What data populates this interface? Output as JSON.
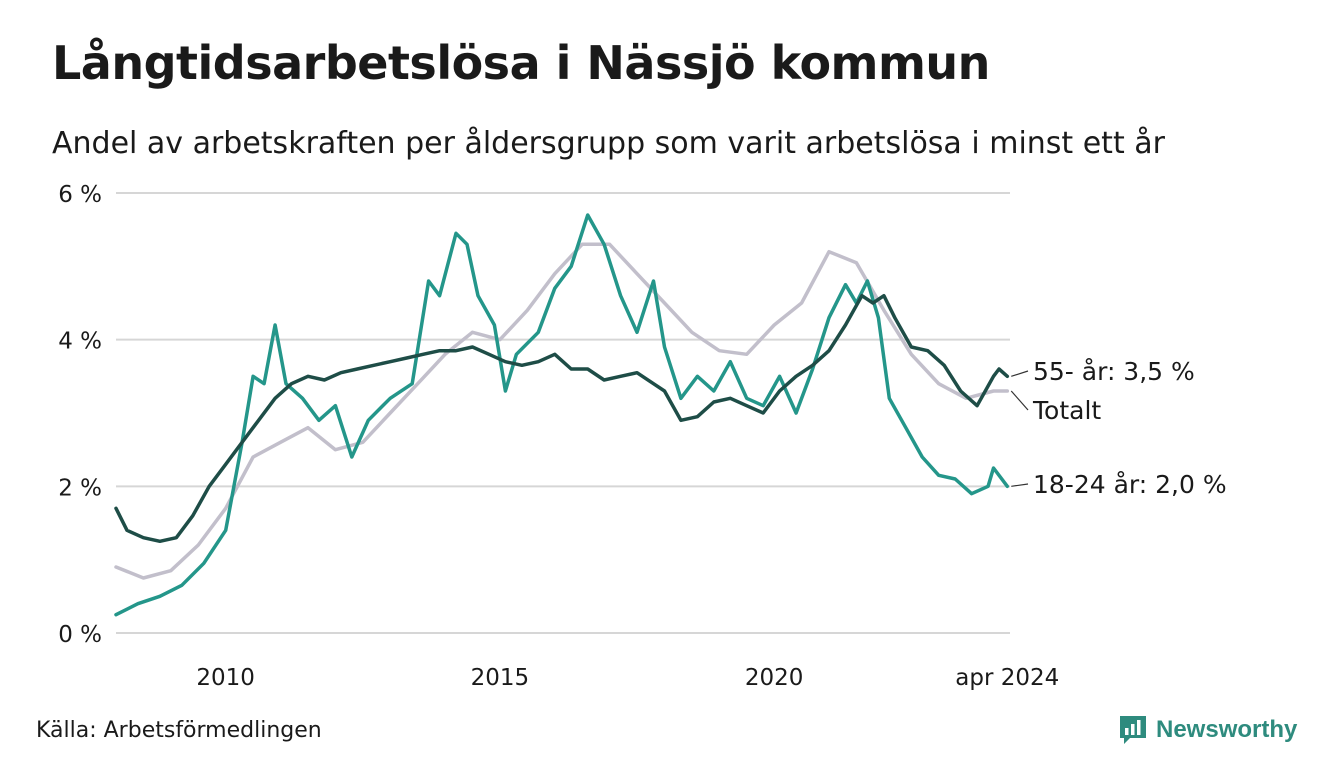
{
  "header": {
    "title": "Långtidsarbetslösa i Nässjö kommun",
    "subtitle": "Andel av arbetskraften per åldersgrupp som varit arbetslösa i minst ett år"
  },
  "footer": {
    "source": "Källa: Arbetsförmedlingen",
    "brand": "Newsworthy",
    "brand_icon": "newsworthy-logo-icon"
  },
  "colors": {
    "senior": "#1e4d47",
    "youth": "#24968a",
    "total": "#c2bfcb",
    "grid": "#d6d6d6",
    "brand": "#2e8b7e"
  },
  "chart_data": {
    "type": "line",
    "title": "Långtidsarbetslösa i Nässjö kommun",
    "xlabel": "",
    "ylabel": "",
    "x_start": "2008-01",
    "x_end": "2024-04",
    "xlim": [
      2008.0,
      2024.3
    ],
    "ylim": [
      0,
      6
    ],
    "grid": true,
    "y_ticks": [
      {
        "value": 0,
        "label": "0 %"
      },
      {
        "value": 2,
        "label": "2 %"
      },
      {
        "value": 4,
        "label": "4 %"
      },
      {
        "value": 6,
        "label": "6 %"
      }
    ],
    "x_ticks": [
      {
        "value": 2010.0,
        "label": "2010"
      },
      {
        "value": 2015.0,
        "label": "2015"
      },
      {
        "value": 2020.0,
        "label": "2020"
      },
      {
        "value": 2024.25,
        "label": "apr 2024"
      }
    ],
    "series": [
      {
        "name": "Totalt",
        "label": "Totalt",
        "color": "#c2bfcb",
        "points": [
          [
            2008.0,
            0.9
          ],
          [
            2008.5,
            0.75
          ],
          [
            2009.0,
            0.85
          ],
          [
            2009.5,
            1.2
          ],
          [
            2010.0,
            1.7
          ],
          [
            2010.5,
            2.4
          ],
          [
            2011.0,
            2.6
          ],
          [
            2011.5,
            2.8
          ],
          [
            2012.0,
            2.5
          ],
          [
            2012.5,
            2.6
          ],
          [
            2013.0,
            3.0
          ],
          [
            2013.5,
            3.4
          ],
          [
            2014.0,
            3.8
          ],
          [
            2014.5,
            4.1
          ],
          [
            2015.0,
            4.0
          ],
          [
            2015.5,
            4.4
          ],
          [
            2016.0,
            4.9
          ],
          [
            2016.5,
            5.3
          ],
          [
            2017.0,
            5.3
          ],
          [
            2017.5,
            4.9
          ],
          [
            2018.0,
            4.5
          ],
          [
            2018.5,
            4.1
          ],
          [
            2019.0,
            3.85
          ],
          [
            2019.5,
            3.8
          ],
          [
            2020.0,
            4.2
          ],
          [
            2020.5,
            4.5
          ],
          [
            2021.0,
            5.2
          ],
          [
            2021.5,
            5.05
          ],
          [
            2022.0,
            4.4
          ],
          [
            2022.5,
            3.8
          ],
          [
            2023.0,
            3.4
          ],
          [
            2023.5,
            3.2
          ],
          [
            2024.0,
            3.3
          ],
          [
            2024.25,
            3.3
          ]
        ]
      },
      {
        "name": "18-24 år",
        "label": "18-24 år: 2,0 %",
        "color": "#24968a",
        "points": [
          [
            2008.0,
            0.25
          ],
          [
            2008.4,
            0.4
          ],
          [
            2008.8,
            0.5
          ],
          [
            2009.2,
            0.65
          ],
          [
            2009.6,
            0.95
          ],
          [
            2010.0,
            1.4
          ],
          [
            2010.3,
            2.6
          ],
          [
            2010.5,
            3.5
          ],
          [
            2010.7,
            3.4
          ],
          [
            2010.9,
            4.2
          ],
          [
            2011.1,
            3.4
          ],
          [
            2011.4,
            3.2
          ],
          [
            2011.7,
            2.9
          ],
          [
            2012.0,
            3.1
          ],
          [
            2012.3,
            2.4
          ],
          [
            2012.6,
            2.9
          ],
          [
            2013.0,
            3.2
          ],
          [
            2013.4,
            3.4
          ],
          [
            2013.7,
            4.8
          ],
          [
            2013.9,
            4.6
          ],
          [
            2014.2,
            5.45
          ],
          [
            2014.4,
            5.3
          ],
          [
            2014.6,
            4.6
          ],
          [
            2014.9,
            4.2
          ],
          [
            2015.1,
            3.3
          ],
          [
            2015.3,
            3.8
          ],
          [
            2015.7,
            4.1
          ],
          [
            2016.0,
            4.7
          ],
          [
            2016.3,
            5.0
          ],
          [
            2016.6,
            5.7
          ],
          [
            2016.9,
            5.3
          ],
          [
            2017.2,
            4.6
          ],
          [
            2017.5,
            4.1
          ],
          [
            2017.8,
            4.8
          ],
          [
            2018.0,
            3.9
          ],
          [
            2018.3,
            3.2
          ],
          [
            2018.6,
            3.5
          ],
          [
            2018.9,
            3.3
          ],
          [
            2019.2,
            3.7
          ],
          [
            2019.5,
            3.2
          ],
          [
            2019.8,
            3.1
          ],
          [
            2020.1,
            3.5
          ],
          [
            2020.4,
            3.0
          ],
          [
            2020.7,
            3.6
          ],
          [
            2021.0,
            4.3
          ],
          [
            2021.3,
            4.75
          ],
          [
            2021.5,
            4.5
          ],
          [
            2021.7,
            4.8
          ],
          [
            2021.9,
            4.3
          ],
          [
            2022.1,
            3.2
          ],
          [
            2022.4,
            2.8
          ],
          [
            2022.7,
            2.4
          ],
          [
            2023.0,
            2.15
          ],
          [
            2023.3,
            2.1
          ],
          [
            2023.6,
            1.9
          ],
          [
            2023.9,
            2.0
          ],
          [
            2024.0,
            2.25
          ],
          [
            2024.25,
            2.0
          ]
        ]
      },
      {
        "name": "55- år",
        "label": "55- år: 3,5 %",
        "color": "#1e4d47",
        "points": [
          [
            2008.0,
            1.7
          ],
          [
            2008.2,
            1.4
          ],
          [
            2008.5,
            1.3
          ],
          [
            2008.8,
            1.25
          ],
          [
            2009.1,
            1.3
          ],
          [
            2009.4,
            1.6
          ],
          [
            2009.7,
            2.0
          ],
          [
            2010.0,
            2.3
          ],
          [
            2010.3,
            2.6
          ],
          [
            2010.6,
            2.9
          ],
          [
            2010.9,
            3.2
          ],
          [
            2011.2,
            3.4
          ],
          [
            2011.5,
            3.5
          ],
          [
            2011.8,
            3.45
          ],
          [
            2012.1,
            3.55
          ],
          [
            2012.4,
            3.6
          ],
          [
            2012.7,
            3.65
          ],
          [
            2013.0,
            3.7
          ],
          [
            2013.3,
            3.75
          ],
          [
            2013.6,
            3.8
          ],
          [
            2013.9,
            3.85
          ],
          [
            2014.2,
            3.85
          ],
          [
            2014.5,
            3.9
          ],
          [
            2014.8,
            3.8
          ],
          [
            2015.1,
            3.7
          ],
          [
            2015.4,
            3.65
          ],
          [
            2015.7,
            3.7
          ],
          [
            2016.0,
            3.8
          ],
          [
            2016.3,
            3.6
          ],
          [
            2016.6,
            3.6
          ],
          [
            2016.9,
            3.45
          ],
          [
            2017.2,
            3.5
          ],
          [
            2017.5,
            3.55
          ],
          [
            2017.8,
            3.4
          ],
          [
            2018.0,
            3.3
          ],
          [
            2018.3,
            2.9
          ],
          [
            2018.6,
            2.95
          ],
          [
            2018.9,
            3.15
          ],
          [
            2019.2,
            3.2
          ],
          [
            2019.5,
            3.1
          ],
          [
            2019.8,
            3.0
          ],
          [
            2020.1,
            3.3
          ],
          [
            2020.4,
            3.5
          ],
          [
            2020.7,
            3.65
          ],
          [
            2021.0,
            3.85
          ],
          [
            2021.3,
            4.2
          ],
          [
            2021.6,
            4.6
          ],
          [
            2021.8,
            4.5
          ],
          [
            2022.0,
            4.6
          ],
          [
            2022.2,
            4.3
          ],
          [
            2022.5,
            3.9
          ],
          [
            2022.8,
            3.85
          ],
          [
            2023.1,
            3.65
          ],
          [
            2023.4,
            3.3
          ],
          [
            2023.7,
            3.1
          ],
          [
            2024.0,
            3.5
          ],
          [
            2024.1,
            3.6
          ],
          [
            2024.25,
            3.5
          ]
        ]
      }
    ]
  }
}
